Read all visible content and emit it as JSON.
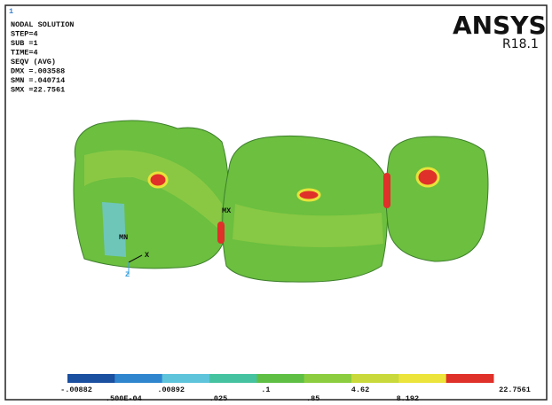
{
  "window_number": "1",
  "info": [
    "NODAL SOLUTION",
    "STEP=4",
    "SUB =1",
    "TIME=4",
    "SEQV      (AVG)",
    "DMX =.003588",
    "SMN =.040714",
    "SMX =22.7561"
  ],
  "brand": {
    "name": "ANSYS",
    "version": "R18.1"
  },
  "model_labels": {
    "max": "MX",
    "min": "MN",
    "x_axis": "X",
    "z_axis": "Z"
  },
  "legend": {
    "colors": [
      "#1b4fa0",
      "#2f86cf",
      "#5ec4db",
      "#45c3a0",
      "#5fbf45",
      "#8ccd3f",
      "#c9d93b",
      "#ece43a",
      "#e0302a"
    ],
    "labels": [
      "-.00882",
      ".500E-04",
      ".00892",
      ".025",
      ".1",
      ".85",
      "4.62",
      "8.192",
      "22.7561"
    ]
  }
}
